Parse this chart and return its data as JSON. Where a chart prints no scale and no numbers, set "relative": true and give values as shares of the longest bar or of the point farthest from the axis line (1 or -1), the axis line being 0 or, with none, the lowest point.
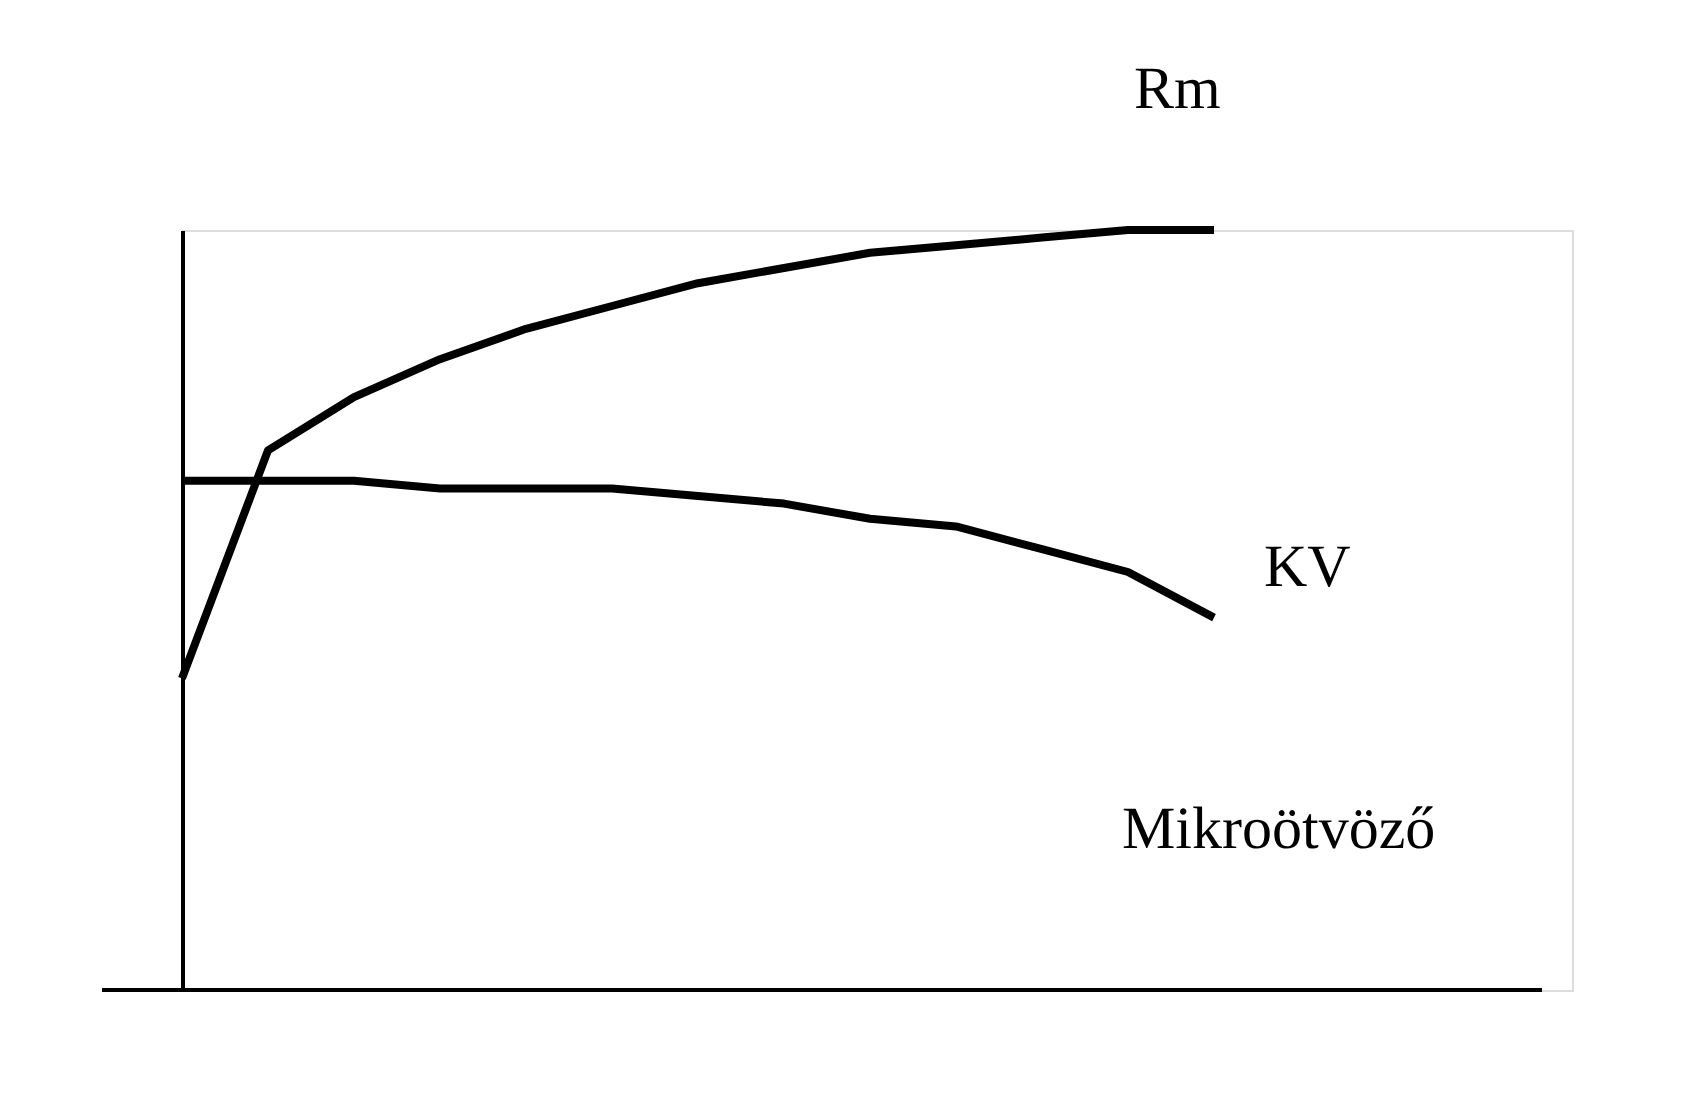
{
  "chart_data": {
    "type": "line",
    "relative": true,
    "xlabel": "Mikroötvöző",
    "categories": [
      null,
      null,
      null,
      null,
      null,
      null,
      null,
      null,
      null,
      null,
      null,
      null,
      null
    ],
    "grid": false,
    "marker": "none",
    "line_style": "solid",
    "series": [
      {
        "name": "Rm",
        "color": "#000000",
        "values": [
          0.41,
          0.71,
          0.78,
          0.83,
          0.87,
          0.9,
          0.93,
          0.95,
          0.97,
          0.98,
          0.99,
          1,
          1
        ]
      },
      {
        "name": "KV",
        "color": "#000000",
        "values": [
          0.67,
          0.67,
          0.67,
          0.66,
          0.66,
          0.66,
          0.65,
          0.64,
          0.62,
          0.61,
          0.58,
          0.55,
          0.49
        ]
      }
    ]
  }
}
